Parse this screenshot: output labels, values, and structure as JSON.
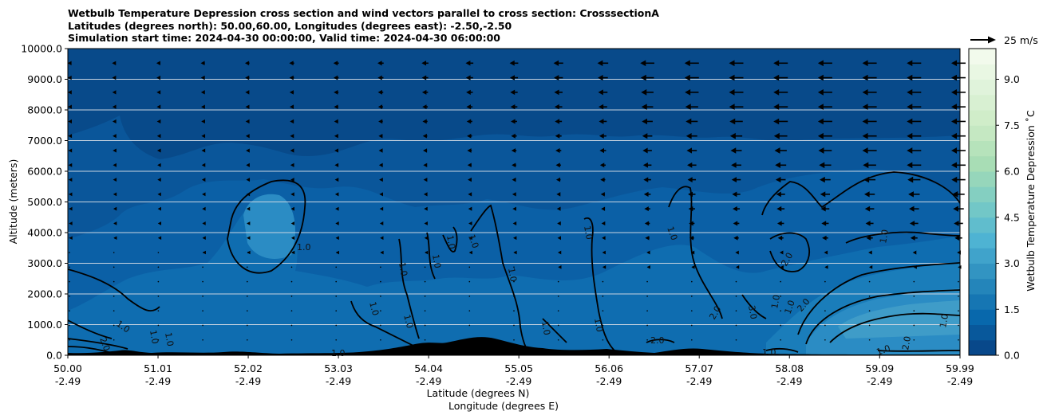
{
  "chart_data": {
    "type": "heatmap",
    "title_lines": [
      "Wetbulb Temperature Depression cross section and wind vectors parallel to cross section: CrosssectionA",
      "Latitudes (degrees north): 50.00,60.00, Longitudes (degrees east): -2.50,-2.50",
      "Simulation start time: 2024-04-30 00:00:00, Valid time: 2024-04-30 06:00:00"
    ],
    "xlabel": "Latitude (degrees N)",
    "xlabel2": "Longitude (degrees E)",
    "ylabel": "Altitude (meters)",
    "x_ticks": [
      {
        "lat": "50.00",
        "lon": "-2.49"
      },
      {
        "lat": "51.01",
        "lon": "-2.49"
      },
      {
        "lat": "52.02",
        "lon": "-2.49"
      },
      {
        "lat": "53.03",
        "lon": "-2.49"
      },
      {
        "lat": "54.04",
        "lon": "-2.49"
      },
      {
        "lat": "55.05",
        "lon": "-2.49"
      },
      {
        "lat": "56.06",
        "lon": "-2.49"
      },
      {
        "lat": "57.07",
        "lon": "-2.49"
      },
      {
        "lat": "58.08",
        "lon": "-2.49"
      },
      {
        "lat": "59.09",
        "lon": "-2.49"
      },
      {
        "lat": "59.99",
        "lon": "-2.49"
      }
    ],
    "y_ticks": [
      "0.0",
      "1000.0",
      "2000.0",
      "3000.0",
      "4000.0",
      "5000.0",
      "6000.0",
      "7000.0",
      "8000.0",
      "9000.0",
      "10000.0"
    ],
    "ylim": [
      0,
      10000
    ],
    "xlim": [
      50.0,
      59.99
    ],
    "grid": "horizontal",
    "colorbar": {
      "label": "Wetbulb Temperature Depression $^\\circ$C",
      "label_display": "Wetbulb Temperature Depression ˚C",
      "ticks": [
        "0.0",
        "1.5",
        "3.0",
        "4.5",
        "6.0",
        "7.5",
        "9.0"
      ],
      "range": [
        0,
        10
      ],
      "colormap": "GnBu_r"
    },
    "contour_labels": [
      "1.0",
      "2.0",
      "3.0"
    ],
    "quiver_key": "25 m/s",
    "colors": {
      "background_fill": "#084a8a",
      "terrain": "#000000",
      "contour": "#000000",
      "grid": "#c8d4e0"
    }
  }
}
